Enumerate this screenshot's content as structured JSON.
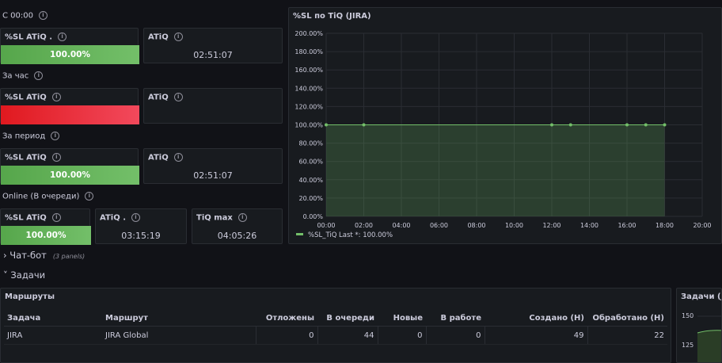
{
  "colors": {
    "background": "#111217",
    "panel": "#181b1f",
    "green": "#73bf69",
    "red": "#f2495c",
    "series": "#73bf69"
  },
  "rows": [
    {
      "label": "С 00:00"
    },
    {
      "label": "За час"
    },
    {
      "label": "За период"
    },
    {
      "label": "Online (В очереди)"
    }
  ],
  "stats": {
    "r1_sl": {
      "title": "%SL ATiQ .",
      "value": "100.00%"
    },
    "r1_atiq": {
      "title": "ATiQ",
      "value": "02:51:07"
    },
    "r2_sl": {
      "title": "%SL ATiQ",
      "value": ""
    },
    "r2_atiq": {
      "title": "ATiQ",
      "value": ""
    },
    "r3_sl": {
      "title": "%SL ATiQ",
      "value": "100.00%"
    },
    "r3_atiq": {
      "title": "ATiQ",
      "value": "02:51:07"
    },
    "r4_sl": {
      "title": "%SL ATiQ",
      "value": "100.00%"
    },
    "r4_atiq": {
      "title": "ATiQ .",
      "value": "03:15:19"
    },
    "r4_tiqmax": {
      "title": "TiQ max",
      "value": "04:05:26"
    }
  },
  "sections": {
    "chatbot": {
      "label": "Чат-бот",
      "count": "(3 panels)"
    },
    "tasks": {
      "label": "Задачи"
    }
  },
  "routes_table": {
    "title": "Маршруты",
    "headers": [
      "Задача",
      "Маршрут",
      "Отложены",
      "В очереди",
      "Новые",
      "В работе",
      "Создано (Н)",
      "Обработано (Н)"
    ],
    "rows": [
      [
        "JIRA",
        "JIRA Global",
        "0",
        "44",
        "0",
        "0",
        "49",
        "22"
      ]
    ]
  },
  "mini_panel": {
    "title": "Задачи (JIR",
    "ticks": [
      "150",
      "125"
    ]
  },
  "chart_data": {
    "type": "area",
    "title": "%SL по TiQ (JIRA)",
    "x_ticks": [
      "00:00",
      "02:00",
      "04:00",
      "06:00",
      "08:00",
      "10:00",
      "12:00",
      "14:00",
      "16:00",
      "18:00",
      "20:00"
    ],
    "y_ticks": [
      "0.00%",
      "20.00%",
      "40.00%",
      "60.00%",
      "80.00%",
      "100.00%",
      "120.00%",
      "140.00%",
      "160.00%",
      "180.00%",
      "200.00%"
    ],
    "xlim": [
      0,
      20
    ],
    "ylim": [
      0,
      200
    ],
    "grid": true,
    "legend_position": "bottom-left",
    "series": [
      {
        "name": "%SL_TiQ",
        "legend_text": "Last *: 100.00%",
        "x": [
          0,
          2,
          12,
          13,
          16,
          17,
          18
        ],
        "y": [
          100,
          100,
          100,
          100,
          100,
          100,
          100
        ]
      }
    ]
  }
}
